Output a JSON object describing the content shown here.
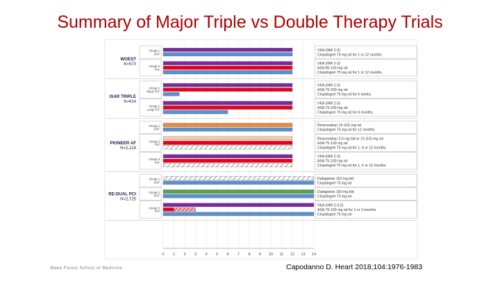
{
  "slide": {
    "title": "Summary of Major Triple vs Double Therapy Trials",
    "footer_left": "Wake Forest School of Medicine",
    "citation": "Capodanno D. Heart 2018;104:1976-1983"
  },
  "colors": {
    "title": "#b00000",
    "triple_therapy": "#e8001c",
    "vka_or_dabigatran": "#7a2a9c",
    "clopidogrel": "#5b8fd1",
    "rivaroxaban": "#ef8a3c",
    "dabigatran_150": "#52a34a",
    "aspirin_hatched": "#d0d0d0"
  },
  "chart_data": {
    "type": "bar",
    "orientation": "horizontal",
    "x_ticks": [
      "0",
      "1",
      "2",
      "3",
      "4",
      "5",
      "6",
      "7",
      "8",
      "9",
      "10",
      "11",
      "12",
      "13",
      "14"
    ],
    "xlim": [
      0,
      14
    ],
    "trials": [
      {
        "name": "WOEST",
        "n": "N=573",
        "groups": [
          {
            "label": [
              "Group 1",
              "DAT"
            ],
            "bars": [
              {
                "color": "vka_or_dabigatran",
                "start": 0,
                "end": 12,
                "style": "solid"
              },
              {
                "color": "clopidogrel",
                "start": 0,
                "end": 12,
                "style": "solid"
              }
            ],
            "drugs": [
              "VKA (INR 2-3)",
              "Clopidogrel 75 mg od for 1 or 12 months"
            ]
          },
          {
            "label": [
              "Group 2",
              "TAT"
            ],
            "bars": [
              {
                "color": "vka_or_dabigatran",
                "start": 0,
                "end": 12,
                "style": "solid"
              },
              {
                "color": "triple_therapy",
                "start": 0,
                "end": 12,
                "style": "solid"
              },
              {
                "color": "clopidogrel",
                "start": 0,
                "end": 12,
                "style": "solid"
              }
            ],
            "drugs": [
              "VKA (INR 2-3)",
              "ASA 80-100 mg od",
              "Clopidogrel 75 mg od for 1 or 12 months"
            ]
          }
        ]
      },
      {
        "name": "ISAR TRIPLE",
        "n": "N=614",
        "groups": [
          {
            "label": [
              "Group 1",
              "Short TAT"
            ],
            "bars": [
              {
                "color": "vka_or_dabigatran",
                "start": 0,
                "end": 12,
                "style": "solid"
              },
              {
                "color": "triple_therapy",
                "start": 0,
                "end": 12,
                "style": "solid"
              },
              {
                "color": "clopidogrel",
                "start": 0,
                "end": 1.5,
                "style": "solid"
              }
            ],
            "drugs": [
              "VKA (INR 2-3)",
              "ASA 75-200 mg od",
              "Clopidogrel 75 mg od for 6 weeks"
            ]
          },
          {
            "label": [
              "Group 2",
              "Long TAT"
            ],
            "bars": [
              {
                "color": "vka_or_dabigatran",
                "start": 0,
                "end": 12,
                "style": "solid"
              },
              {
                "color": "triple_therapy",
                "start": 0,
                "end": 12,
                "style": "solid"
              },
              {
                "color": "clopidogrel",
                "start": 0,
                "end": 6,
                "style": "solid"
              }
            ],
            "drugs": [
              "VKA (INR 2-3)",
              "ASA 75-200 mg od",
              "Clopidogrel 75 mg od for 6 months"
            ]
          }
        ]
      },
      {
        "name": "PIONEER AF",
        "n": "N=2,124",
        "groups": [
          {
            "label": [
              "Group 1",
              "DAT"
            ],
            "bars": [
              {
                "color": "rivaroxaban",
                "start": 0,
                "end": 12,
                "style": "solid"
              },
              {
                "color": "clopidogrel",
                "start": 0,
                "end": 12,
                "style": "solid"
              }
            ],
            "drugs": [
              "Rivaroxaban 15 (10) mg od",
              "Clopidogrel 75 mg od for 12 months"
            ]
          },
          {
            "label": [
              "Group 2",
              "TAT"
            ],
            "bars": [
              {
                "color": "rivaroxaban",
                "start": 0,
                "end": 12,
                "style": "pale"
              },
              {
                "color": "triple_therapy",
                "start": 0,
                "end": 12,
                "style": "solid"
              },
              {
                "color": "clopidogrel",
                "start": 0,
                "end": 12,
                "style": "hatched"
              }
            ],
            "drugs": [
              "Rivaroxaban 2.5 mg bid or 15 (10) mg od",
              "ASA 75-100 mg od",
              "Clopidogrel 75 mg od for 1, 6 or 12 months"
            ]
          },
          {
            "label": [
              "Group 3",
              "TAT"
            ],
            "bars": [
              {
                "color": "vka_or_dabigatran",
                "start": 0,
                "end": 12,
                "style": "solid"
              },
              {
                "color": "triple_therapy",
                "start": 0,
                "end": 12,
                "style": "solid"
              },
              {
                "color": "clopidogrel",
                "start": 0,
                "end": 12,
                "style": "hatched"
              }
            ],
            "drugs": [
              "VKA (INR 2-3)",
              "ASA 75-100 mg od",
              "Clopidogrel 75 mg od for 1, 6 or 12 months"
            ]
          }
        ]
      },
      {
        "name": "RE-DUAL PCI",
        "n": "N=2,725",
        "groups": [
          {
            "label": [
              "Group 1",
              "DAT"
            ],
            "bars": [
              {
                "color": "vka_or_dabigatran",
                "start": 0,
                "end": 14,
                "style": "hatched"
              },
              {
                "color": "clopidogrel",
                "start": 0,
                "end": 14,
                "style": "solid"
              }
            ],
            "drugs": [
              "Dabigatran 110 mg bid",
              "Clopidogrel 75 mg od"
            ]
          },
          {
            "label": [
              "Group 2",
              "DAT"
            ],
            "bars": [
              {
                "color": "dabigatran_150",
                "start": 0,
                "end": 14,
                "style": "solid"
              },
              {
                "color": "clopidogrel",
                "start": 0,
                "end": 14,
                "style": "solid"
              }
            ],
            "drugs": [
              "Dabigatran 150 mg bid",
              "Clopidogrel 75 mg od"
            ]
          },
          {
            "label": [
              "Group 3",
              "TAT"
            ],
            "bars": [
              {
                "color": "vka_or_dabigatran",
                "start": 0,
                "end": 14,
                "style": "solid"
              },
              {
                "color": "triple_therapy",
                "start": 0,
                "end": 1,
                "style": "solid"
              },
              {
                "color": "triple_therapy",
                "start": 1,
                "end": 3,
                "style": "hatched"
              },
              {
                "color": "clopidogrel",
                "start": 0,
                "end": 14,
                "style": "solid"
              }
            ],
            "drugs": [
              "VKA (INR 2-3.0)",
              "ASA 75-100 mg od for 1 or 3 months",
              "Clopidogrel 75 mg od"
            ]
          }
        ]
      }
    ]
  }
}
